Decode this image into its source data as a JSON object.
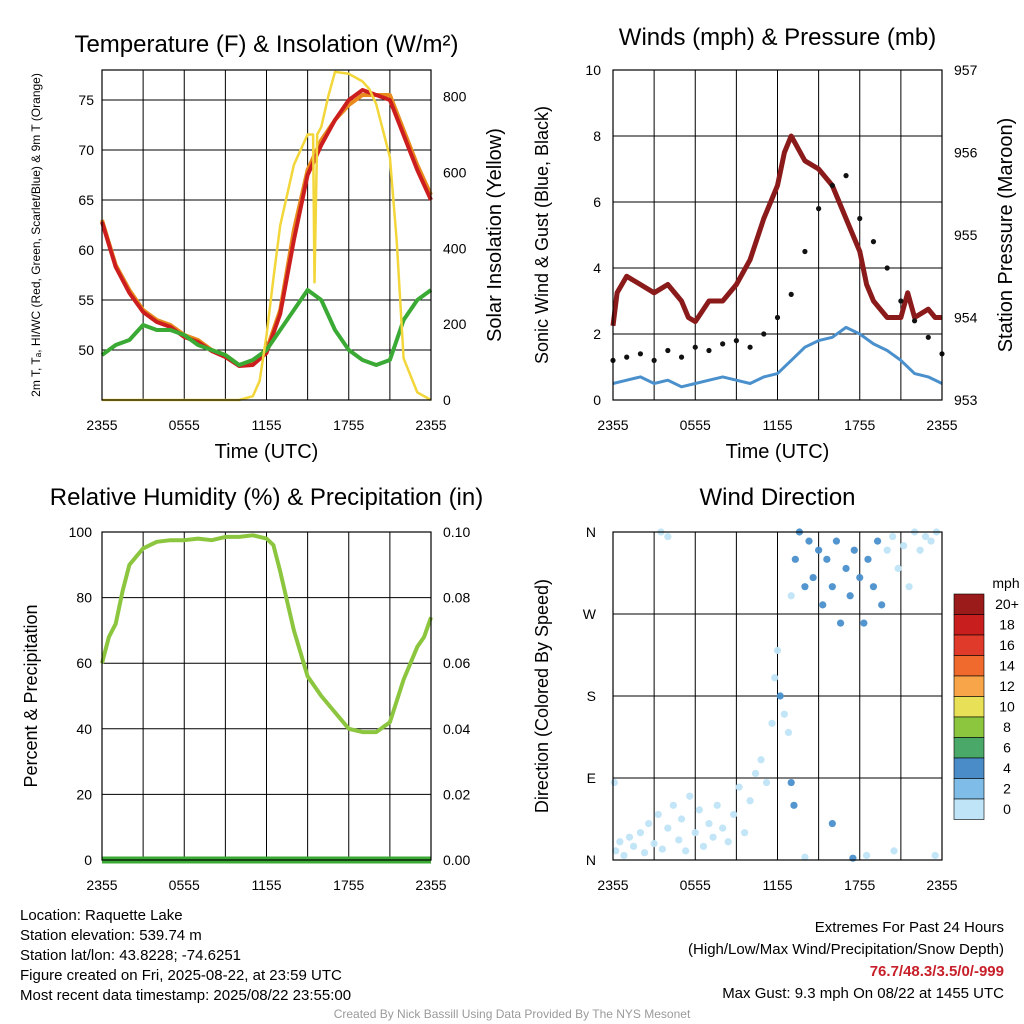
{
  "chart_data": [
    {
      "id": "temp",
      "type": "line",
      "title": "Temperature (F) & Insolation (W/m²)",
      "xlabel": "Time (UTC)",
      "ylabel_left": "2m T, Tₐ, HI/WC (Red, Green, Scarlet/Blue) & 9m T (Orange)",
      "ylabel_right": "Solar Insolation (Yellow)",
      "x_ticks": [
        "2355",
        "0555",
        "1155",
        "1755",
        "2355"
      ],
      "xlim": [
        0,
        24
      ],
      "ylim_left": [
        45,
        78
      ],
      "ylim_right": [
        0,
        870
      ],
      "y_ticks_left": [
        50,
        55,
        60,
        65,
        70,
        75
      ],
      "y_ticks_right": [
        0,
        200,
        400,
        600,
        800
      ],
      "grid": true,
      "series": [
        {
          "color": "#e88a1e",
          "axis": "left",
          "x": [
            0,
            1,
            2,
            3,
            4,
            5,
            6,
            7,
            8,
            9,
            10,
            11,
            12,
            13,
            14,
            15,
            16,
            17,
            18,
            19,
            20,
            21,
            22,
            23,
            24
          ],
          "y": [
            63,
            58.5,
            56,
            54,
            53,
            52.5,
            51.5,
            51,
            50,
            49.5,
            48.5,
            48.6,
            50,
            54,
            62,
            68,
            71,
            73,
            74.5,
            75.5,
            75.5,
            75.5,
            72,
            68.5,
            65.5
          ]
        },
        {
          "color": "#cc1e1e",
          "axis": "left",
          "x": [
            0,
            1,
            2,
            3,
            4,
            5,
            6,
            7,
            8,
            9,
            10,
            11,
            12,
            13,
            14,
            15,
            16,
            17,
            18,
            19,
            20,
            21,
            22,
            23,
            24
          ],
          "y": [
            62.8,
            58.3,
            55.7,
            53.8,
            52.8,
            52.3,
            51.3,
            50.8,
            49.9,
            49.3,
            48.4,
            48.5,
            49.7,
            53.6,
            61,
            67.5,
            70.5,
            73,
            75,
            76,
            75.5,
            75,
            71.5,
            68,
            65
          ]
        },
        {
          "color": "#3aaa35",
          "axis": "left",
          "x": [
            0,
            1,
            2,
            3,
            4,
            5,
            6,
            7,
            8,
            9,
            10,
            11,
            12,
            13,
            14,
            15,
            16,
            17,
            18,
            19,
            20,
            21,
            22,
            23,
            24
          ],
          "y": [
            49.5,
            50.5,
            51,
            52.5,
            52,
            52,
            51.5,
            50.5,
            50,
            49.5,
            48.5,
            49,
            50,
            52,
            54,
            56,
            55,
            52,
            50,
            49,
            48.5,
            49,
            53,
            55,
            56
          ]
        },
        {
          "color": "#f2d63a",
          "axis": "right",
          "x": [
            0,
            10,
            11,
            11.5,
            12,
            12.5,
            13,
            14,
            15,
            15.4,
            15.5,
            15.7,
            16,
            16.5,
            17,
            18,
            19,
            19.5,
            20,
            21,
            21.5,
            22,
            23,
            24
          ],
          "y": [
            0,
            0,
            10,
            50,
            170,
            320,
            460,
            620,
            700,
            700,
            310,
            700,
            720,
            800,
            865,
            860,
            840,
            820,
            780,
            640,
            420,
            110,
            20,
            0
          ]
        }
      ]
    },
    {
      "id": "winds",
      "type": "line",
      "title": "Winds (mph) & Pressure (mb)",
      "xlabel": "Time (UTC)",
      "ylabel_left": "Sonic Wind & Gust (Blue, Black)",
      "ylabel_right": "Station Pressure (Maroon)",
      "x_ticks": [
        "2355",
        "0555",
        "1155",
        "1755",
        "2355"
      ],
      "xlim": [
        0,
        24
      ],
      "ylim_left": [
        0,
        10
      ],
      "ylim_right": [
        953,
        957
      ],
      "y_ticks_left": [
        0,
        2,
        4,
        6,
        8,
        10
      ],
      "y_ticks_right": [
        953,
        954,
        955,
        956,
        957
      ],
      "grid": true,
      "series": [
        {
          "color": "#8b1a1a",
          "axis": "right",
          "x": [
            0,
            0.3,
            1,
            2,
            3,
            4,
            5,
            5.5,
            6,
            7,
            8,
            9,
            10,
            11,
            12,
            12.5,
            13,
            14,
            15,
            16,
            17,
            18,
            18.5,
            19,
            20,
            21,
            21.5,
            22,
            23,
            23.5,
            24
          ],
          "y": [
            953.9,
            954.3,
            954.5,
            954.4,
            954.3,
            954.4,
            954.2,
            954,
            953.95,
            954.2,
            954.2,
            954.4,
            954.7,
            955.2,
            955.6,
            956,
            956.2,
            955.9,
            955.8,
            955.6,
            955.2,
            954.8,
            954.4,
            954.2,
            954.0,
            954.0,
            954.3,
            954.0,
            954.1,
            954,
            954.0
          ]
        },
        {
          "color": "#4a90cc",
          "axis": "left",
          "x": [
            0,
            1,
            2,
            3,
            4,
            5,
            6,
            7,
            8,
            9,
            10,
            11,
            12,
            13,
            14,
            15,
            16,
            17,
            18,
            19,
            20,
            21,
            22,
            23,
            24
          ],
          "y": [
            0.5,
            0.6,
            0.7,
            0.5,
            0.6,
            0.4,
            0.5,
            0.6,
            0.7,
            0.6,
            0.5,
            0.7,
            0.8,
            1.2,
            1.6,
            1.8,
            1.9,
            2.2,
            2.0,
            1.7,
            1.5,
            1.2,
            0.8,
            0.7,
            0.5
          ]
        },
        {
          "color": "#111111",
          "axis": "left",
          "mode": "markers",
          "x": [
            0,
            1,
            2,
            3,
            4,
            5,
            6,
            7,
            8,
            9,
            10,
            11,
            12,
            13,
            14,
            15,
            16,
            17,
            18,
            19,
            20,
            21,
            22,
            23,
            24
          ],
          "y": [
            1.2,
            1.3,
            1.4,
            1.2,
            1.5,
            1.3,
            1.6,
            1.5,
            1.7,
            1.8,
            1.6,
            2.0,
            2.5,
            3.2,
            4.5,
            5.8,
            6.5,
            6.8,
            5.5,
            4.8,
            4.0,
            3.0,
            2.4,
            1.9,
            1.4
          ]
        }
      ]
    },
    {
      "id": "rh",
      "type": "line",
      "title": "Relative Humidity (%) & Precipitation (in)",
      "xlabel": "",
      "ylabel_left": "Percent & Precipitation",
      "x_ticks": [
        "2355",
        "0555",
        "1155",
        "1755",
        "2355"
      ],
      "xlim": [
        0,
        24
      ],
      "ylim_left": [
        0,
        100
      ],
      "ylim_right": [
        0,
        0.1
      ],
      "y_ticks_left": [
        0,
        20,
        40,
        60,
        80,
        100
      ],
      "y_ticks_right": [
        "0.00",
        "0.02",
        "0.04",
        "0.06",
        "0.08",
        "0.10"
      ],
      "grid": true,
      "series": [
        {
          "color": "#8cc63f",
          "axis": "left",
          "x": [
            0,
            0.5,
            1,
            1.5,
            2,
            3,
            4,
            5,
            6,
            7,
            8,
            9,
            10,
            11,
            12,
            12.5,
            13,
            14,
            15,
            16,
            17,
            18,
            19,
            20,
            21,
            22,
            23,
            23.5,
            24
          ],
          "y": [
            60,
            68,
            72,
            82,
            90,
            95,
            97,
            97.5,
            97.5,
            98,
            97.5,
            98.5,
            98.5,
            99,
            98,
            96,
            88,
            70,
            56,
            50,
            45,
            40,
            39,
            39,
            42,
            55,
            65,
            68,
            74
          ]
        },
        {
          "color": "#3aaa35",
          "axis": "right",
          "x": [
            0,
            24
          ],
          "y": [
            0,
            0
          ]
        }
      ]
    },
    {
      "id": "wdir",
      "type": "scatter",
      "title": "Wind Direction",
      "xlabel": "",
      "ylabel_left": "Direction (Colored By Speed)",
      "x_ticks": [
        "2355",
        "0555",
        "1155",
        "1755",
        "2355"
      ],
      "xlim": [
        0,
        24
      ],
      "ylim_left": [
        0,
        400
      ],
      "y_ticks_labels": [
        "N",
        "E",
        "S",
        "W",
        "N"
      ],
      "y_ticks_values": [
        0,
        90,
        180,
        270,
        360
      ],
      "grid": true,
      "colorbar": {
        "title": "mph",
        "labels": [
          "20+",
          "18",
          "16",
          "14",
          "12",
          "10",
          "8",
          "6",
          "4",
          "2",
          "0"
        ],
        "colors": [
          "#9b1b1b",
          "#c81e1e",
          "#e03a2a",
          "#ef6a2c",
          "#f7a548",
          "#e8e157",
          "#8cc63f",
          "#4aa868",
          "#4a8cc8",
          "#7fbde8",
          "#bfe4f7"
        ]
      },
      "points": [
        [
          0.2,
          10,
          0
        ],
        [
          0.5,
          20,
          0
        ],
        [
          0.8,
          5,
          0
        ],
        [
          1.2,
          25,
          0
        ],
        [
          1.5,
          15,
          0
        ],
        [
          2,
          30,
          0
        ],
        [
          2.3,
          8,
          0
        ],
        [
          2.6,
          40,
          0
        ],
        [
          3,
          18,
          0
        ],
        [
          3.3,
          50,
          0
        ],
        [
          3.6,
          12,
          0
        ],
        [
          4,
          35,
          0
        ],
        [
          4.4,
          60,
          0
        ],
        [
          4.8,
          22,
          0
        ],
        [
          5,
          45,
          0
        ],
        [
          5.3,
          10,
          0
        ],
        [
          5.6,
          70,
          0
        ],
        [
          6,
          30,
          0
        ],
        [
          6.3,
          55,
          0
        ],
        [
          6.6,
          15,
          0
        ],
        [
          7,
          40,
          0
        ],
        [
          7.3,
          25,
          0
        ],
        [
          7.6,
          60,
          0
        ],
        [
          8,
          35,
          0
        ],
        [
          8.4,
          20,
          0
        ],
        [
          8.8,
          50,
          0
        ],
        [
          9.2,
          80,
          0
        ],
        [
          9.6,
          30,
          0
        ],
        [
          10,
          65,
          0
        ],
        [
          10.4,
          95,
          0
        ],
        [
          10.8,
          110,
          0
        ],
        [
          11.2,
          85,
          0
        ],
        [
          11.6,
          150,
          0
        ],
        [
          11.8,
          200,
          0
        ],
        [
          12,
          230,
          0
        ],
        [
          12.2,
          180,
          1
        ],
        [
          12.5,
          160,
          0
        ],
        [
          12.8,
          140,
          0
        ],
        [
          13,
          290,
          0
        ],
        [
          13.3,
          330,
          1
        ],
        [
          13.6,
          360,
          1
        ],
        [
          14,
          300,
          1
        ],
        [
          14.3,
          350,
          1
        ],
        [
          14.6,
          310,
          1
        ],
        [
          15,
          340,
          1
        ],
        [
          15.3,
          280,
          1
        ],
        [
          15.6,
          330,
          1
        ],
        [
          16,
          300,
          1
        ],
        [
          16.3,
          350,
          1
        ],
        [
          16.6,
          260,
          1
        ],
        [
          17,
          320,
          1
        ],
        [
          17.3,
          290,
          1
        ],
        [
          17.6,
          340,
          1
        ],
        [
          18,
          310,
          1
        ],
        [
          18.3,
          260,
          1
        ],
        [
          18.6,
          330,
          1
        ],
        [
          19,
          300,
          1
        ],
        [
          19.3,
          350,
          1
        ],
        [
          19.6,
          280,
          1
        ],
        [
          20,
          340,
          0
        ],
        [
          20.4,
          355,
          0
        ],
        [
          20.8,
          320,
          0
        ],
        [
          21.2,
          345,
          0
        ],
        [
          21.6,
          300,
          0
        ],
        [
          22,
          360,
          0
        ],
        [
          22.4,
          340,
          0
        ],
        [
          22.8,
          355,
          0
        ],
        [
          23.2,
          350,
          0
        ],
        [
          23.6,
          360,
          0
        ],
        [
          0.1,
          85,
          0
        ],
        [
          3.5,
          360,
          0
        ],
        [
          4,
          355,
          0
        ],
        [
          14,
          3,
          0
        ],
        [
          17.5,
          2,
          1
        ],
        [
          18.5,
          5,
          0
        ],
        [
          20.5,
          10,
          0
        ],
        [
          23.5,
          5,
          0
        ],
        [
          16,
          40,
          1
        ],
        [
          13,
          85,
          1
        ],
        [
          13.2,
          60,
          1
        ]
      ]
    }
  ],
  "info": {
    "location": "Location: Raquette Lake",
    "elevation": "Station elevation: 539.74 m",
    "latlon": "Station lat/lon: 43.8228; -74.6251",
    "created": "Figure created on Fri, 2025-08-22, at 23:59 UTC",
    "recent": "Most recent data timestamp: 2025/08/22 23:55:00"
  },
  "extremes": {
    "title": "Extremes For Past 24 Hours",
    "subtitle": "(High/Low/Max Wind/Precipitation/Snow Depth)",
    "values": "76.7/48.3/3.5/0/-999",
    "gust": "Max Gust: 9.3 mph On 08/22 at 1455 UTC"
  },
  "credit": "Created By Nick Bassill Using Data Provided By The NYS Mesonet"
}
